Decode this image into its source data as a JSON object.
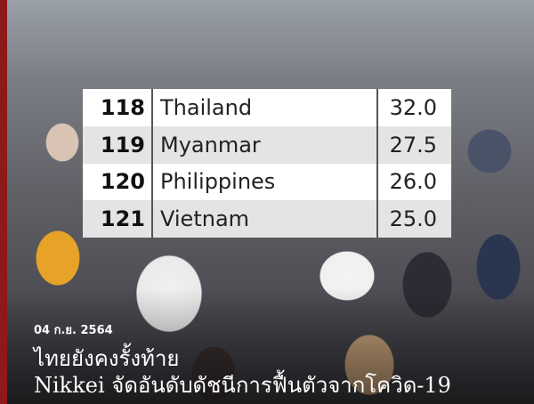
{
  "table": {
    "rows": [
      {
        "rank": "118",
        "country": "Thailand",
        "score": "32.0"
      },
      {
        "rank": "119",
        "country": "Myanmar",
        "score": "27.5"
      },
      {
        "rank": "120",
        "country": "Philippines",
        "score": "26.0"
      },
      {
        "rank": "121",
        "country": "Vietnam",
        "score": "25.0"
      }
    ]
  },
  "date": "04 ก.ย. 2564",
  "headline": {
    "line1": "ไทยยังคงรั้งท้าย",
    "line2": "Nikkei จัดอันดับดัชนีการฟื้นตัวจากโควิด-19"
  },
  "colors": {
    "accent_bar": "#8c1a1a",
    "alt_row": "#e4e4e4"
  }
}
